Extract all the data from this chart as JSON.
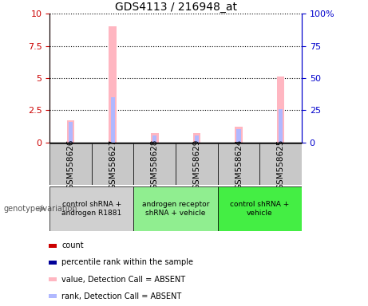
{
  "title": "GDS4113 / 216948_at",
  "samples": [
    "GSM558626",
    "GSM558627",
    "GSM558628",
    "GSM558629",
    "GSM558624",
    "GSM558625"
  ],
  "groups": [
    {
      "label": "control shRNA +\nandrogen R1881",
      "color": "#d0d0d0",
      "span": [
        0,
        2
      ]
    },
    {
      "label": "androgen receptor\nshRNA + vehicle",
      "color": "#90ee90",
      "span": [
        2,
        4
      ]
    },
    {
      "label": "control shRNA +\nvehicle",
      "color": "#44ee44",
      "span": [
        4,
        6
      ]
    }
  ],
  "values_absent": [
    1.7,
    9.0,
    0.7,
    0.7,
    1.2,
    5.1
  ],
  "rank_absent_pct": [
    16,
    35,
    5,
    5,
    10,
    26
  ],
  "ylim_left": [
    0,
    10
  ],
  "ylim_right": [
    0,
    100
  ],
  "yticks_left": [
    0,
    2.5,
    5,
    7.5,
    10
  ],
  "yticks_right": [
    0,
    25,
    50,
    75,
    100
  ],
  "ytick_labels_left": [
    "0",
    "2.5",
    "5",
    "7.5",
    "10"
  ],
  "ytick_labels_right": [
    "0",
    "25",
    "50",
    "75",
    "100%"
  ],
  "color_value_absent": "#ffb6c1",
  "color_rank_absent": "#b0b8ff",
  "color_count": "#cc0000",
  "color_rank_present": "#000099",
  "bar_width": 0.18,
  "legend_items": [
    {
      "color": "#cc0000",
      "label": "count"
    },
    {
      "color": "#000099",
      "label": "percentile rank within the sample"
    },
    {
      "color": "#ffb6c1",
      "label": "value, Detection Call = ABSENT"
    },
    {
      "color": "#b0b8ff",
      "label": "rank, Detection Call = ABSENT"
    }
  ],
  "genotype_label": "genotype/variation",
  "header_bg": "#c8c8c8",
  "left_axis_color": "#cc0000",
  "right_axis_color": "#0000cc"
}
